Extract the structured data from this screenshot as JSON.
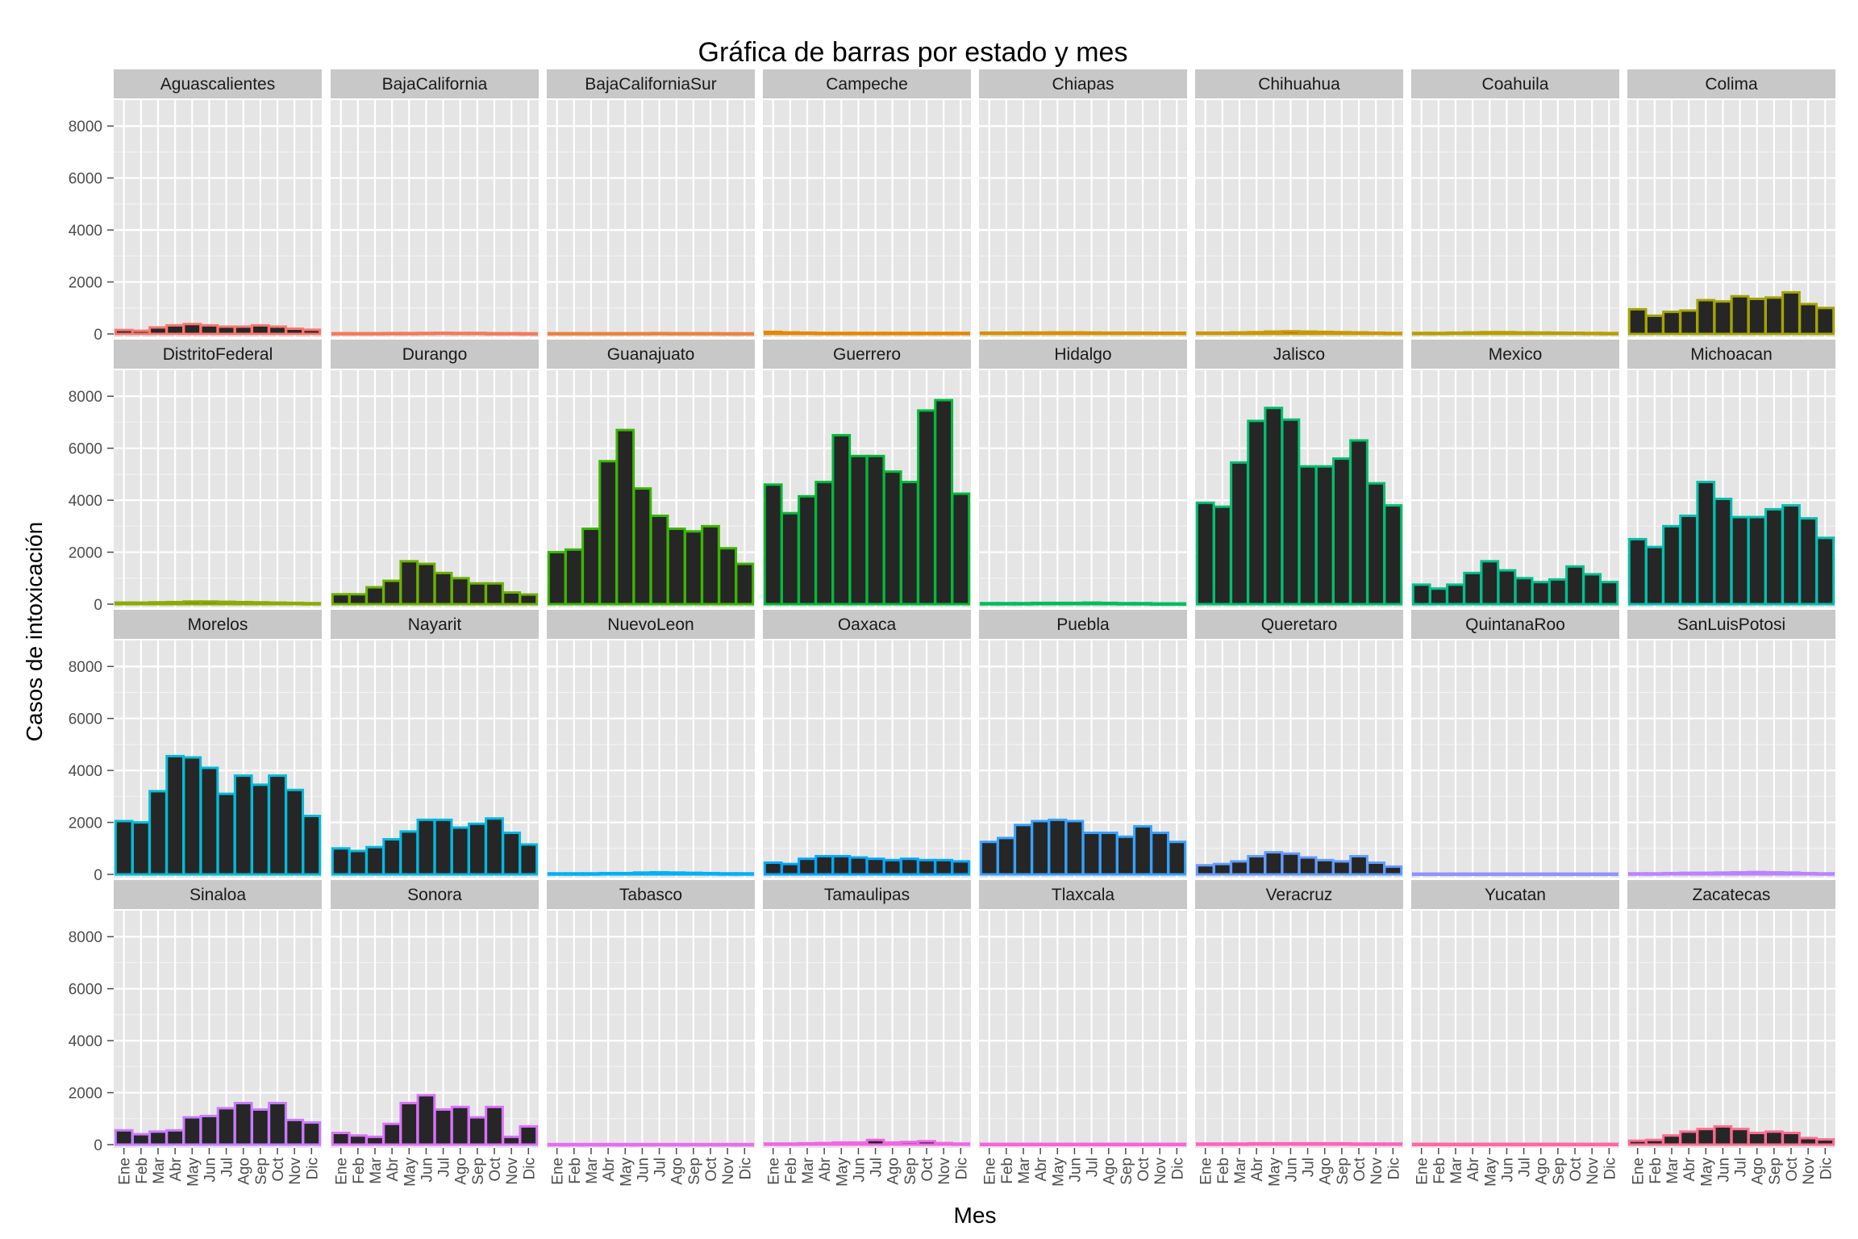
{
  "chart_data": {
    "type": "bar",
    "title": "Gráfica de barras por estado y mes",
    "xlabel": "Mes",
    "ylabel": "Casos de intoxicación",
    "ylim": [
      0,
      9000
    ],
    "yticks": [
      0,
      2000,
      4000,
      6000,
      8000
    ],
    "months": [
      "Ene",
      "Feb",
      "Mar",
      "Abr",
      "May",
      "Jun",
      "Jul",
      "Ago",
      "Sep",
      "Oct",
      "Nov",
      "Dic"
    ],
    "grid": true,
    "legend": "none",
    "bar_fill": "#262626",
    "panel_background": "#e5e5e5",
    "strip_background": "#c8c8c8",
    "panels": [
      {
        "state": "Aguascalientes",
        "color": "#f8766d",
        "values": [
          150,
          120,
          250,
          330,
          380,
          330,
          280,
          280,
          330,
          280,
          200,
          160
        ]
      },
      {
        "state": "BajaCalifornia",
        "color": "#f37b59",
        "values": [
          30,
          30,
          30,
          35,
          35,
          40,
          45,
          40,
          40,
          30,
          30,
          25
        ]
      },
      {
        "state": "BajaCaliforniaSur",
        "color": "#ed8141",
        "values": [
          30,
          30,
          30,
          30,
          30,
          30,
          35,
          30,
          30,
          30,
          25,
          25
        ]
      },
      {
        "state": "Campeche",
        "color": "#e58700",
        "values": [
          80,
          60,
          50,
          40,
          40,
          40,
          40,
          40,
          40,
          40,
          40,
          40
        ]
      },
      {
        "state": "Chiapas",
        "color": "#d89000",
        "values": [
          50,
          50,
          55,
          55,
          60,
          60,
          55,
          50,
          50,
          50,
          45,
          45
        ]
      },
      {
        "state": "Chihuahua",
        "color": "#c99800",
        "values": [
          50,
          50,
          60,
          70,
          90,
          100,
          90,
          80,
          70,
          60,
          50,
          40
        ]
      },
      {
        "state": "Coahuila",
        "color": "#b79f00",
        "values": [
          40,
          40,
          50,
          60,
          70,
          70,
          60,
          55,
          50,
          45,
          40,
          35
        ]
      },
      {
        "state": "Colima",
        "color": "#a3a500",
        "values": [
          950,
          700,
          850,
          900,
          1300,
          1250,
          1450,
          1350,
          1400,
          1600,
          1150,
          1000
        ]
      },
      {
        "state": "DistritoFederal",
        "color": "#8bab00",
        "values": [
          60,
          60,
          70,
          80,
          100,
          100,
          90,
          80,
          70,
          60,
          50,
          40
        ]
      },
      {
        "state": "Durango",
        "color": "#6bb100",
        "values": [
          380,
          380,
          650,
          900,
          1650,
          1550,
          1200,
          1000,
          800,
          800,
          450,
          370
        ]
      },
      {
        "state": "Guanajuato",
        "color": "#39b600",
        "values": [
          2000,
          2100,
          2900,
          5500,
          6700,
          4450,
          3400,
          2900,
          2800,
          3000,
          2150,
          1550
        ]
      },
      {
        "state": "Guerrero",
        "color": "#00ba38",
        "values": [
          4600,
          3500,
          4150,
          4700,
          6500,
          5700,
          5700,
          5100,
          4700,
          7450,
          7850,
          4250
        ]
      },
      {
        "state": "Hidalgo",
        "color": "#00bd5c",
        "values": [
          40,
          40,
          40,
          50,
          50,
          50,
          60,
          50,
          40,
          40,
          30,
          30
        ]
      },
      {
        "state": "Jalisco",
        "color": "#00be70",
        "values": [
          3900,
          3750,
          5450,
          7050,
          7550,
          7100,
          5300,
          5300,
          5600,
          6300,
          4650,
          3800
        ]
      },
      {
        "state": "Mexico",
        "color": "#00c08b",
        "values": [
          750,
          600,
          750,
          1200,
          1650,
          1300,
          1000,
          850,
          950,
          1450,
          1150,
          850
        ]
      },
      {
        "state": "Michoacan",
        "color": "#00c0af",
        "values": [
          2500,
          2200,
          3000,
          3400,
          4700,
          4050,
          3350,
          3350,
          3650,
          3800,
          3300,
          2550
        ]
      },
      {
        "state": "Morelos",
        "color": "#00bcd8",
        "values": [
          2050,
          2000,
          3200,
          4550,
          4500,
          4100,
          3100,
          3800,
          3450,
          3800,
          3250,
          2250
        ]
      },
      {
        "state": "Nayarit",
        "color": "#00b9e3",
        "values": [
          1000,
          900,
          1050,
          1350,
          1650,
          2100,
          2100,
          1800,
          1950,
          2150,
          1600,
          1150
        ]
      },
      {
        "state": "NuevoLeon",
        "color": "#00b0f6",
        "values": [
          40,
          40,
          40,
          50,
          50,
          70,
          80,
          70,
          60,
          50,
          40,
          40
        ]
      },
      {
        "state": "Oaxaca",
        "color": "#00a9ff",
        "values": [
          450,
          400,
          600,
          700,
          700,
          650,
          600,
          550,
          600,
          550,
          550,
          500
        ]
      },
      {
        "state": "Puebla",
        "color": "#35a2ff",
        "values": [
          1250,
          1400,
          1900,
          2050,
          2100,
          2050,
          1600,
          1600,
          1450,
          1850,
          1600,
          1250
        ]
      },
      {
        "state": "Queretaro",
        "color": "#619cff",
        "values": [
          350,
          400,
          500,
          700,
          850,
          800,
          650,
          550,
          500,
          700,
          450,
          300
        ]
      },
      {
        "state": "QuintanaRoo",
        "color": "#9590ff",
        "values": [
          30,
          30,
          30,
          30,
          30,
          30,
          30,
          30,
          30,
          30,
          30,
          30
        ]
      },
      {
        "state": "SanLuisPotosi",
        "color": "#b983ff",
        "values": [
          40,
          40,
          50,
          60,
          60,
          70,
          80,
          90,
          80,
          70,
          50,
          40
        ]
      },
      {
        "state": "Sinaloa",
        "color": "#c77cff",
        "values": [
          550,
          400,
          500,
          550,
          1050,
          1100,
          1400,
          1600,
          1350,
          1600,
          950,
          850
        ]
      },
      {
        "state": "Sonora",
        "color": "#db72fb",
        "values": [
          450,
          350,
          300,
          800,
          1600,
          1900,
          1350,
          1450,
          1050,
          1450,
          300,
          700
        ]
      },
      {
        "state": "Tabasco",
        "color": "#e76bf3",
        "values": [
          20,
          20,
          20,
          20,
          20,
          20,
          20,
          20,
          20,
          20,
          20,
          20
        ]
      },
      {
        "state": "Tamaulipas",
        "color": "#f265e7",
        "values": [
          40,
          40,
          50,
          60,
          80,
          80,
          180,
          80,
          100,
          130,
          60,
          40
        ]
      },
      {
        "state": "Tlaxcala",
        "color": "#fa62db",
        "values": [
          30,
          30,
          30,
          30,
          30,
          30,
          30,
          30,
          30,
          30,
          30,
          30
        ]
      },
      {
        "state": "Veracruz",
        "color": "#ff62bc",
        "values": [
          40,
          40,
          40,
          50,
          50,
          50,
          50,
          50,
          50,
          40,
          40,
          40
        ]
      },
      {
        "state": "Yucatan",
        "color": "#ff67a4",
        "values": [
          30,
          30,
          30,
          30,
          30,
          30,
          30,
          30,
          30,
          30,
          30,
          30
        ]
      },
      {
        "state": "Zacatecas",
        "color": "#ff6c91",
        "values": [
          150,
          180,
          350,
          500,
          600,
          700,
          600,
          450,
          500,
          450,
          250,
          200
        ]
      }
    ]
  }
}
